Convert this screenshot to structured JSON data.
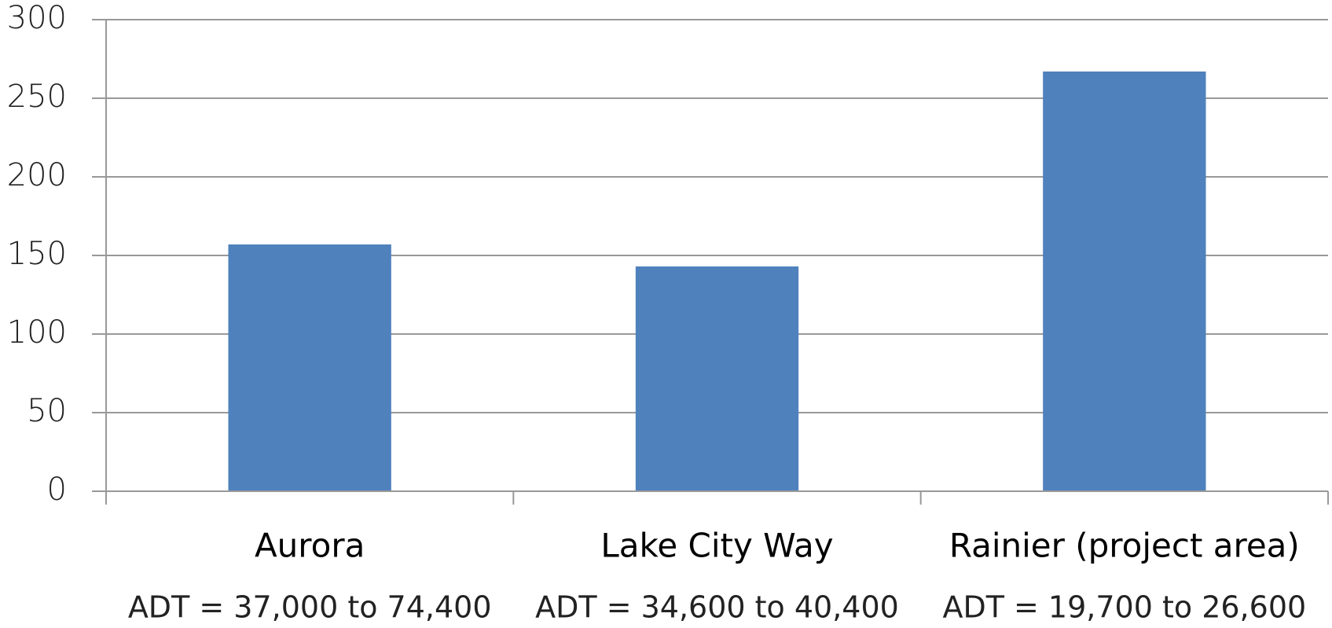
{
  "chart_data": {
    "type": "bar",
    "categories": [
      "Aurora",
      "Lake City Way",
      "Rainier (project area)"
    ],
    "category_details": [
      "ADT = 37,000 to 74,400",
      "ADT = 34,600 to 40,400",
      "ADT = 19,700 to 26,600"
    ],
    "values": [
      157,
      143,
      267
    ],
    "color": "#4f81bd",
    "ylim": [
      0,
      300
    ],
    "yticks": [
      0,
      50,
      100,
      150,
      200,
      250,
      300
    ],
    "grid": true
  }
}
